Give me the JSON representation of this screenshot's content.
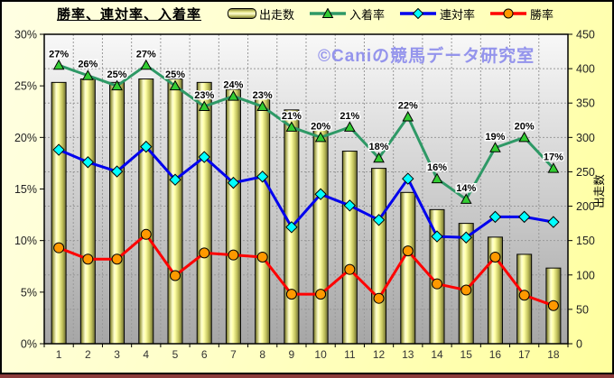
{
  "chart_data": {
    "type": "bar+line combo",
    "title": "勝率、連対率、入着率",
    "watermark": "©Caniの競馬データ研究室",
    "categories": [
      "1",
      "2",
      "3",
      "4",
      "5",
      "6",
      "7",
      "8",
      "9",
      "10",
      "11",
      "12",
      "13",
      "14",
      "15",
      "16",
      "17",
      "18"
    ],
    "left_axis": {
      "unit": "%",
      "min": 0,
      "max": 30,
      "step": 5,
      "tick_labels": [
        "0%",
        "5%",
        "10%",
        "15%",
        "20%",
        "25%",
        "30%"
      ]
    },
    "right_axis": {
      "title": "出走数",
      "min": 0,
      "max": 450,
      "step": 50,
      "tick_labels": [
        "0",
        "50",
        "100",
        "150",
        "200",
        "250",
        "300",
        "350",
        "400",
        "450"
      ]
    },
    "gridlines": {
      "horizontal": "every 50 on right axis, dotted",
      "vertical": "category boundaries, dotted"
    },
    "legend_position": "top",
    "series": [
      {
        "name": "出走数",
        "type": "bar",
        "axis": "right",
        "values": [
          380,
          385,
          380,
          385,
          385,
          380,
          370,
          360,
          340,
          315,
          280,
          255,
          220,
          195,
          175,
          155,
          130,
          110
        ]
      },
      {
        "name": "入着率",
        "type": "line",
        "axis": "left",
        "marker": "triangle",
        "color": "#2e9966",
        "marker_fill": "#33cc33",
        "data_labels": true,
        "values": [
          27,
          26,
          25,
          27,
          25,
          23,
          24,
          23,
          21,
          20,
          21,
          18,
          22,
          16,
          14,
          19,
          20,
          17
        ]
      },
      {
        "name": "連対率",
        "type": "line",
        "axis": "left",
        "marker": "diamond",
        "color": "#0000ee",
        "marker_fill": "#00ffff",
        "data_labels": false,
        "values": [
          18.8,
          17.6,
          16.7,
          19.1,
          15.9,
          18.1,
          15.6,
          16.2,
          11.3,
          14.5,
          13.4,
          12.0,
          16.0,
          10.4,
          10.3,
          12.3,
          12.3,
          11.8
        ]
      },
      {
        "name": "勝率",
        "type": "line",
        "axis": "left",
        "marker": "circle",
        "color": "#ff0000",
        "marker_fill": "#ff9900",
        "data_labels": false,
        "values": [
          9.3,
          8.2,
          8.2,
          10.6,
          6.6,
          8.8,
          8.6,
          8.4,
          4.8,
          4.8,
          7.2,
          4.4,
          9.0,
          5.8,
          5.2,
          8.4,
          4.7,
          3.7
        ]
      }
    ]
  },
  "colors": {
    "frame_background_light": "#ffffe3",
    "frame_background_dark": "#ffff9e",
    "plot_top": "#f8f8f8",
    "plot_bottom": "#a6a6a6",
    "grid": "#999999",
    "axis_text": "#222222",
    "bar_edge": "#6b6b33",
    "bar_highlight": "#ffffd2",
    "watermark": "#9494ec",
    "window_bottom_edge": "#8b3a3a"
  }
}
